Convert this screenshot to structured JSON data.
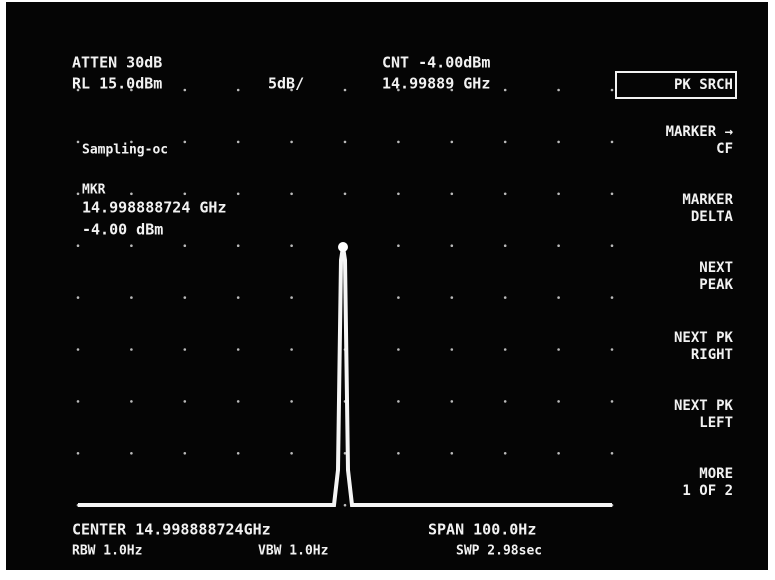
{
  "header": {
    "atten": "ATTEN 30dB",
    "ref_level": "RL 15.0dBm",
    "scale": "5dB/",
    "counter": "CNT -4.00dBm",
    "counter_freq": "14.99889 GHz"
  },
  "annotation": "Sampling-oc",
  "marker": {
    "label": "MKR",
    "frequency": "14.998888724 GHz",
    "amplitude": "-4.00 dBm"
  },
  "softkeys": [
    [
      "PK SRCH"
    ],
    [
      "MARKER →",
      "CF"
    ],
    [
      "MARKER",
      "DELTA"
    ],
    [
      "NEXT",
      "PEAK"
    ],
    [
      "NEXT PK",
      "RIGHT"
    ],
    [
      "NEXT PK",
      "LEFT"
    ],
    [
      "MORE",
      "1 OF 2"
    ]
  ],
  "footer": {
    "center": "CENTER 14.998888724GHz",
    "span": "SPAN 100.0Hz",
    "rbw": "RBW 1.0Hz",
    "vbw": "VBW 1.0Hz",
    "sweep": "SWP 2.98sec"
  }
}
